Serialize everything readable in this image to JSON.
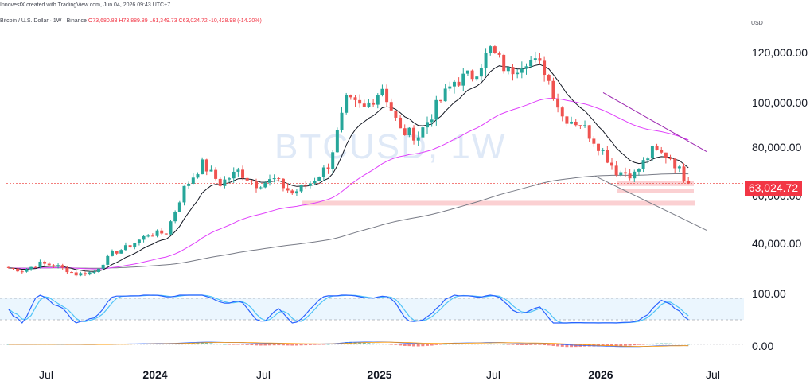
{
  "header": {
    "created": "InnovestX created with TradingView.com, Jun 04, 2026 09:43 UTC+7",
    "symbol": "Bitcoin / U.S. Dollar · 1W · Binance",
    "ohlc": "O73,680.83 H73,889.89 L61,349.73 C63,024.72 -10,428.98 (-14.20%)"
  },
  "currency": "USD",
  "watermark": "BTCUSD, 1W",
  "price_tag": "63,024.72",
  "price_axis": [
    "120,000.00",
    "100,000.00",
    "80,000.00",
    "60,000.00",
    "40,000.00"
  ],
  "stoch_axis": [
    "100.00"
  ],
  "macd_axis": [
    "0.00"
  ],
  "time_axis": [
    "Jul",
    "2024",
    "Jul",
    "2025",
    "Jul",
    "2026",
    "Jul"
  ],
  "colors": {
    "up": "#26a69a",
    "down": "#ef5350",
    "ema_fast": "#131722",
    "ema_50": "#e040fb",
    "ema_200": "#787b86",
    "trendline": "#9c27b0",
    "support": "#f7a9ad",
    "stoch_k": "#2962ff",
    "stoch_d": "#4fc3f7",
    "macd": "#2962ff",
    "signal": "#ff9800"
  },
  "chart_data": {
    "type": "candlestick",
    "interval": "1W",
    "x": [
      "2023-04",
      "2023-05",
      "2023-06",
      "2023-07",
      "2023-08",
      "2023-09",
      "2023-10",
      "2023-11",
      "2023-12",
      "2024-01",
      "2024-02",
      "2024-03",
      "2024-04",
      "2024-05",
      "2024-06",
      "2024-07",
      "2024-08",
      "2024-09",
      "2024-10",
      "2024-11",
      "2024-12",
      "2025-01",
      "2025-02",
      "2025-03",
      "2025-04",
      "2025-05",
      "2025-06",
      "2025-07",
      "2025-08",
      "2025-09",
      "2025-10",
      "2025-11",
      "2025-12",
      "2026-01",
      "2026-02",
      "2026-03",
      "2026-04",
      "2026-05",
      "2026-06"
    ],
    "close": [
      29000,
      27500,
      30500,
      29300,
      26000,
      27000,
      34500,
      37700,
      42300,
      43000,
      61000,
      71000,
      63000,
      68000,
      62700,
      64600,
      59000,
      63300,
      70300,
      96400,
      93400,
      102400,
      84300,
      82500,
      94200,
      104600,
      107100,
      117500,
      108300,
      114000,
      109600,
      90400,
      87500,
      78600,
      68000,
      66800,
      76300,
      73700,
      63024.72
    ],
    "ylim": [
      26000,
      128000
    ],
    "ema_labels": [],
    "support_zones": [
      63000,
      60000,
      55000
    ],
    "last": 63024.72,
    "stochastic_range": [
      0,
      100
    ],
    "macd_zero": 0
  }
}
